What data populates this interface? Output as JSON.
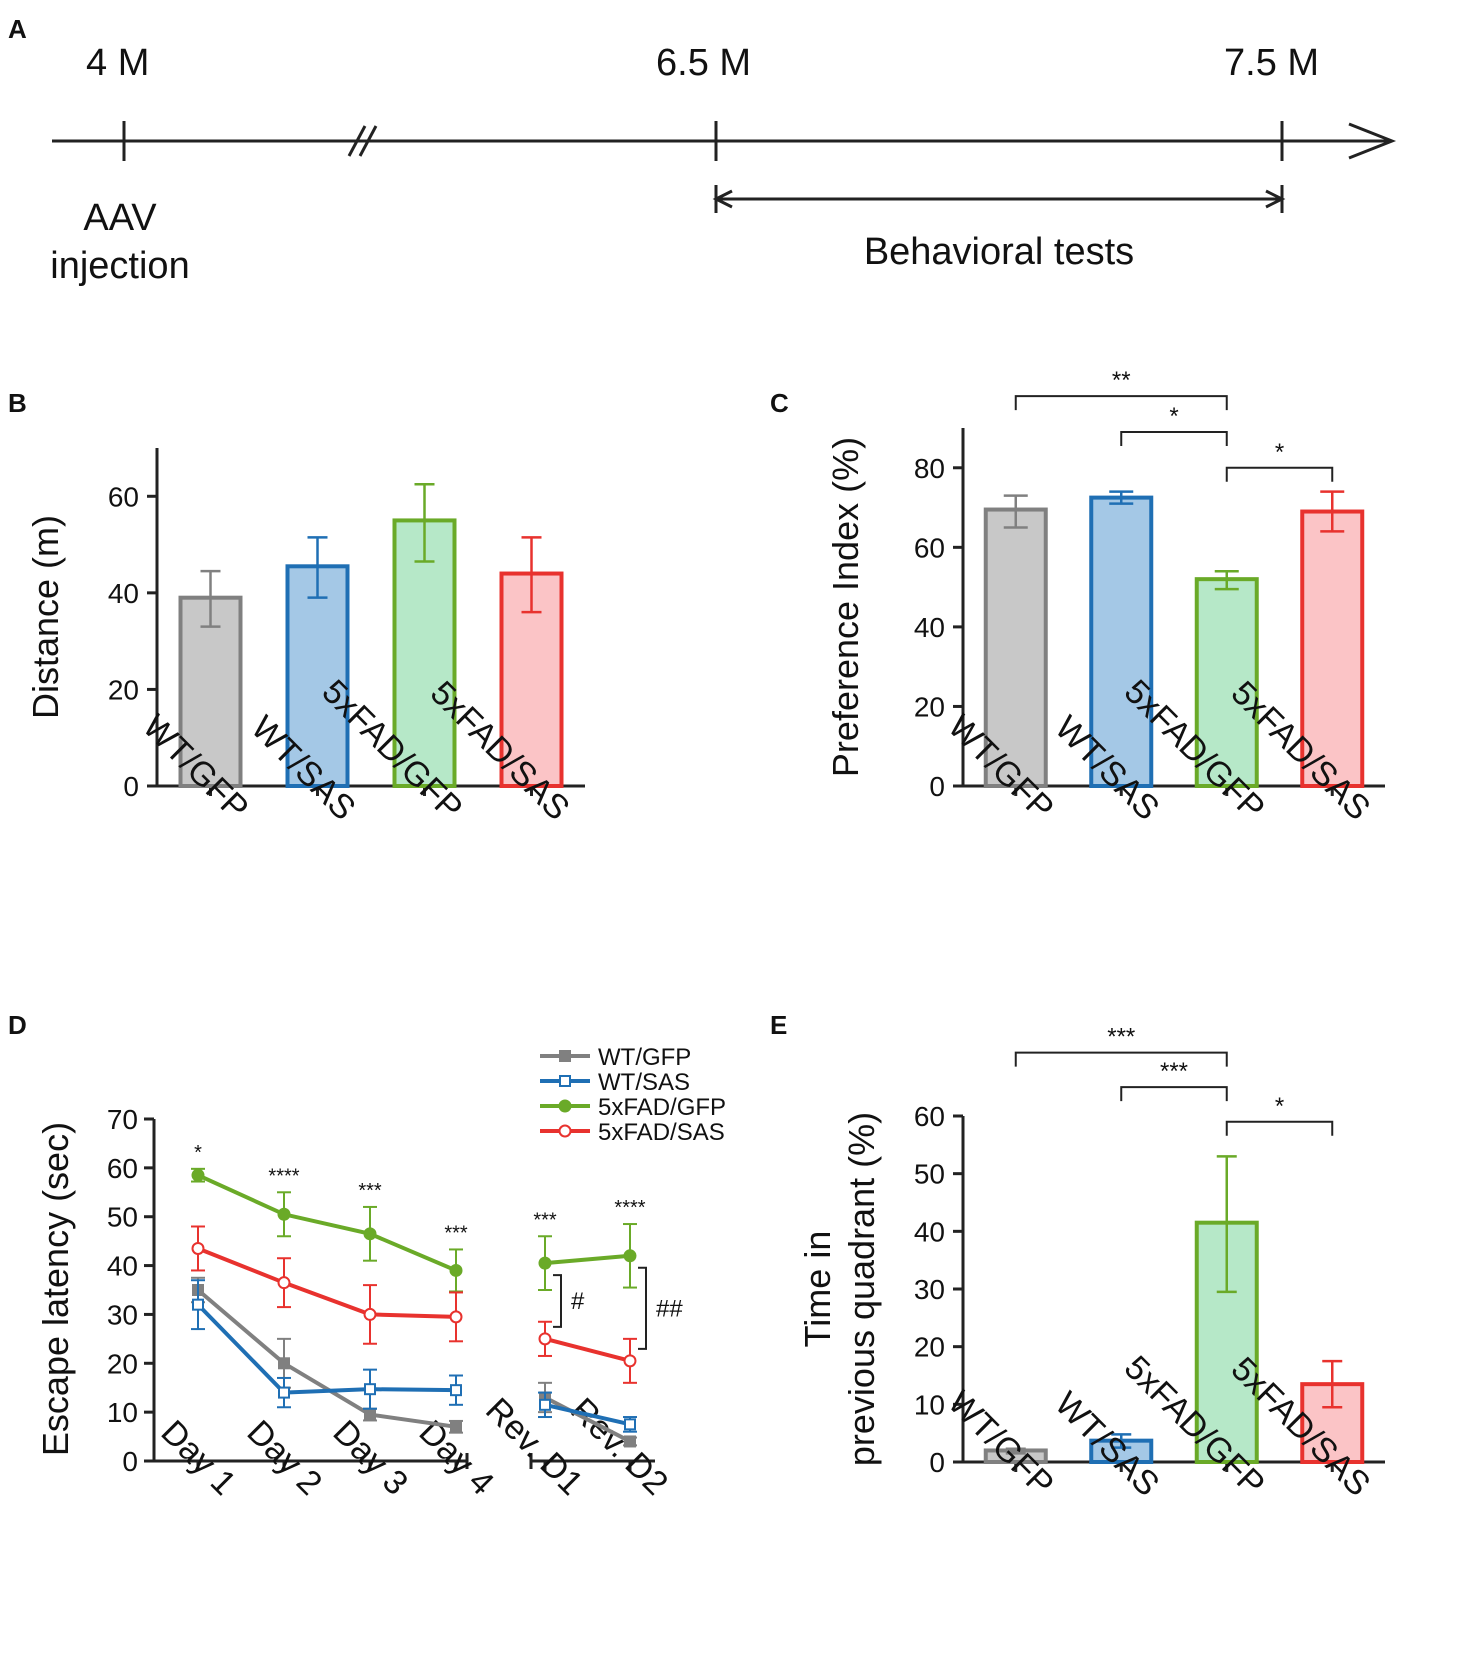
{
  "panels": {
    "A": "A",
    "B": "B",
    "C": "C",
    "D": "D",
    "E": "E"
  },
  "timeline": {
    "ticks": [
      "4 M",
      "6.5 M",
      "7.5 M"
    ],
    "event": "AAV\ninjection",
    "range_label": "Behavioral tests",
    "break_mark": "//"
  },
  "groups": [
    "WT/GFP",
    "WT/SAS",
    "5xFAD/GFP",
    "5xFAD/SAS"
  ],
  "colors": {
    "gray": "#808080",
    "gray_fill": "#c8c8c8",
    "blue": "#1f6fb4",
    "blue_fill": "#a4c8e6",
    "green": "#6aaa28",
    "green_fill": "#b6e8c8",
    "red": "#e8322e",
    "red_fill": "#fbc4c6"
  },
  "chart_data": [
    {
      "panel": "B",
      "type": "bar",
      "title": "",
      "categories": [
        "WT/GFP",
        "WT/SAS",
        "5xFAD/GFP",
        "5xFAD/SAS"
      ],
      "values": [
        39,
        45.5,
        55,
        44
      ],
      "errors": [
        [
          33,
          44.5
        ],
        [
          39,
          51.5
        ],
        [
          46.5,
          62.5
        ],
        [
          36,
          51.5
        ]
      ],
      "xlabel": "",
      "ylabel": "Distance (m)",
      "ylim": [
        0,
        70
      ],
      "yticks": [
        0,
        20,
        40,
        60
      ],
      "significance": []
    },
    {
      "panel": "C",
      "type": "bar",
      "title": "",
      "categories": [
        "WT/GFP",
        "WT/SAS",
        "5xFAD/GFP",
        "5xFAD/SAS"
      ],
      "values": [
        69.5,
        72.5,
        52,
        69
      ],
      "errors": [
        [
          65,
          73
        ],
        [
          71,
          74
        ],
        [
          49.5,
          54
        ],
        [
          64,
          74
        ]
      ],
      "xlabel": "",
      "ylabel": "Preference Index (%)",
      "ylim": [
        0,
        90
      ],
      "yticks": [
        0,
        20,
        40,
        60,
        80
      ],
      "significance": [
        {
          "from": 0,
          "to": 2,
          "label": "**",
          "level": 98
        },
        {
          "from": 1,
          "to": 2,
          "label": "*",
          "level": 89
        },
        {
          "from": 2,
          "to": 3,
          "label": "*",
          "level": 80
        }
      ]
    },
    {
      "panel": "D",
      "type": "line",
      "title": "",
      "categories": [
        "Day 1",
        "Day 2",
        "Day 3",
        "Day 4",
        "Rev. D1",
        "Rev. D2"
      ],
      "xlabel": "",
      "ylabel": "Escape latency (sec)",
      "ylim": [
        0,
        70
      ],
      "yticks": [
        0,
        10,
        20,
        30,
        40,
        50,
        60,
        70
      ],
      "series": [
        {
          "name": "WT/GFP",
          "values": [
            35,
            20,
            9.5,
            7,
            13,
            4
          ],
          "err": [
            2.5,
            5,
            1.2,
            1.2,
            3,
            0.8
          ],
          "marker": "square-filled"
        },
        {
          "name": "WT/SAS",
          "values": [
            32,
            14,
            14.7,
            14.5,
            11.5,
            7.5
          ],
          "err": [
            5,
            3,
            4,
            3,
            2.5,
            1.5
          ],
          "marker": "square-open"
        },
        {
          "name": "5xFAD/GFP",
          "values": [
            58.5,
            50.5,
            46.5,
            39,
            40.5,
            42
          ],
          "err": [
            1.3,
            4.5,
            5.5,
            4.3,
            5.5,
            6.5
          ],
          "marker": "circle-filled"
        },
        {
          "name": "5xFAD/SAS",
          "values": [
            43.5,
            36.5,
            30,
            29.5,
            25,
            20.5
          ],
          "err": [
            4.5,
            5,
            6,
            5,
            3.5,
            4.5
          ],
          "marker": "circle-open"
        }
      ],
      "annotations": [
        "*",
        "****",
        "***",
        "***",
        "***",
        "****"
      ],
      "pair_annotations": [
        "#",
        "##"
      ]
    },
    {
      "panel": "E",
      "type": "bar",
      "title": "",
      "categories": [
        "WT/GFP",
        "WT/SAS",
        "5xFAD/GFP",
        "5xFAD/SAS"
      ],
      "values": [
        2,
        3.7,
        41.5,
        13.5
      ],
      "errors": [
        [
          1.5,
          2.3
        ],
        [
          2.5,
          4.8
        ],
        [
          29.5,
          53
        ],
        [
          9.5,
          17.5
        ]
      ],
      "xlabel": "",
      "ylabel": "Time in\nprevious quadrant (%)",
      "ylim": [
        0,
        60
      ],
      "yticks": [
        0,
        10,
        20,
        30,
        40,
        50,
        60
      ],
      "significance": [
        {
          "from": 0,
          "to": 2,
          "label": "***",
          "level": 71
        },
        {
          "from": 1,
          "to": 2,
          "label": "***",
          "level": 65
        },
        {
          "from": 2,
          "to": 3,
          "label": "*",
          "level": 59
        }
      ]
    }
  ]
}
